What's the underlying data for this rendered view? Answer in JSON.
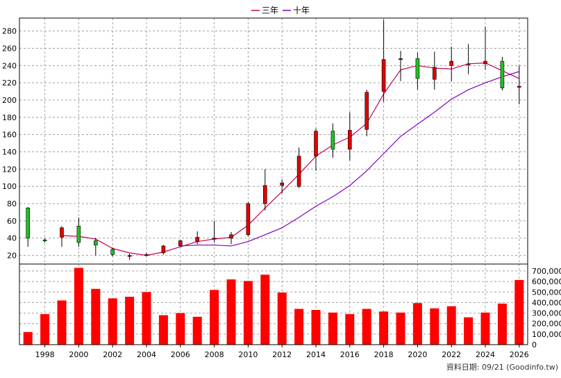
{
  "legend": {
    "items": [
      {
        "label": "三年",
        "color": "#c8005a"
      },
      {
        "label": "十年",
        "color": "#8000c0"
      }
    ]
  },
  "source_note": "資料日期: 09/21 (Goodinfo.tw)",
  "colors": {
    "up_candle": "#e00000",
    "down_candle": "#20c020",
    "volume_bar": "#ff0000",
    "grid": "#a0a0a0",
    "ma3": "#c8005a",
    "ma10": "#8000c0"
  },
  "chart_data": [
    {
      "type": "candlestick",
      "title": "",
      "xlabel": "",
      "ylabel": "",
      "x_tick_labels": [
        "1998",
        "2000",
        "2002",
        "2004",
        "2006",
        "2008",
        "2010",
        "2012",
        "2014",
        "2016",
        "2018",
        "2020",
        "2022",
        "2024",
        "2026"
      ],
      "x_range": [
        1996.5,
        2026.5
      ],
      "y_ticks": [
        20,
        40,
        60,
        80,
        100,
        120,
        140,
        160,
        180,
        200,
        220,
        240,
        260,
        280
      ],
      "ylim": [
        10,
        295
      ],
      "grid": true,
      "ohlc": [
        {
          "year": 1997,
          "open": 75,
          "high": 76,
          "low": 30,
          "close": 40
        },
        {
          "year": 1998,
          "open": 38,
          "high": 40,
          "low": 35,
          "close": 37
        },
        {
          "year": 1999,
          "open": 41,
          "high": 54,
          "low": 30,
          "close": 52
        },
        {
          "year": 2000,
          "open": 54,
          "high": 64,
          "low": 30,
          "close": 35
        },
        {
          "year": 2001,
          "open": 37,
          "high": 40,
          "low": 20,
          "close": 32
        },
        {
          "year": 2002,
          "open": 27,
          "high": 29,
          "low": 19,
          "close": 21
        },
        {
          "year": 2003,
          "open": 20,
          "high": 22,
          "low": 15,
          "close": 20
        },
        {
          "year": 2004,
          "open": 20,
          "high": 23,
          "low": 19,
          "close": 21
        },
        {
          "year": 2005,
          "open": 23,
          "high": 32,
          "low": 21,
          "close": 31
        },
        {
          "year": 2006,
          "open": 31,
          "high": 38,
          "low": 30,
          "close": 37
        },
        {
          "year": 2007,
          "open": 36,
          "high": 48,
          "low": 33,
          "close": 41
        },
        {
          "year": 2008,
          "open": 39,
          "high": 60,
          "low": 35,
          "close": 40
        },
        {
          "year": 2009,
          "open": 40,
          "high": 47,
          "low": 33,
          "close": 44
        },
        {
          "year": 2010,
          "open": 44,
          "high": 82,
          "low": 42,
          "close": 80
        },
        {
          "year": 2011,
          "open": 80,
          "high": 120,
          "low": 72,
          "close": 101
        },
        {
          "year": 2012,
          "open": 101,
          "high": 108,
          "low": 92,
          "close": 104
        },
        {
          "year": 2013,
          "open": 100,
          "high": 145,
          "low": 98,
          "close": 135
        },
        {
          "year": 2014,
          "open": 135,
          "high": 167,
          "low": 118,
          "close": 164
        },
        {
          "year": 2015,
          "open": 164,
          "high": 173,
          "low": 133,
          "close": 143
        },
        {
          "year": 2016,
          "open": 143,
          "high": 186,
          "low": 130,
          "close": 165
        },
        {
          "year": 2017,
          "open": 166,
          "high": 212,
          "low": 158,
          "close": 209
        },
        {
          "year": 2018,
          "open": 210,
          "high": 293,
          "low": 198,
          "close": 247
        },
        {
          "year": 2019,
          "open": 247,
          "high": 257,
          "low": 222,
          "close": 248
        },
        {
          "year": 2020,
          "open": 248,
          "high": 255,
          "low": 212,
          "close": 225
        },
        {
          "year": 2021,
          "open": 224,
          "high": 256,
          "low": 212,
          "close": 238
        },
        {
          "year": 2022,
          "open": 240,
          "high": 262,
          "low": 222,
          "close": 245
        },
        {
          "year": 2023,
          "open": 242,
          "high": 265,
          "low": 230,
          "close": 242
        },
        {
          "year": 2024,
          "open": 242,
          "high": 285,
          "low": 235,
          "close": 245
        },
        {
          "year": 2025,
          "open": 245,
          "high": 250,
          "low": 211,
          "close": 214
        },
        {
          "year": 2026,
          "open": 216,
          "high": 240,
          "low": 195,
          "close": 216
        }
      ],
      "series": [
        {
          "name": "三年",
          "x": [
            1998,
            1999,
            2000,
            2001,
            2002,
            2003,
            2004,
            2005,
            2006,
            2007,
            2008,
            2009,
            2010,
            2011,
            2012,
            2013,
            2014,
            2015,
            2016,
            2017,
            2018,
            2019,
            2020,
            2021,
            2022,
            2023,
            2024,
            2025,
            2026
          ],
          "values": [
            null,
            43,
            42,
            39,
            28,
            23,
            20,
            24,
            30,
            36,
            39,
            41,
            55,
            75,
            94,
            114,
            135,
            148,
            157,
            173,
            207,
            235,
            240,
            237,
            236,
            242,
            243,
            234,
            225
          ]
        },
        {
          "name": "十年",
          "x": [
            2006,
            2007,
            2008,
            2009,
            2010,
            2011,
            2012,
            2013,
            2014,
            2015,
            2016,
            2017,
            2018,
            2019,
            2020,
            2021,
            2022,
            2023,
            2024,
            2025,
            2026
          ],
          "values": [
            31,
            32,
            32,
            31,
            36,
            44,
            52,
            64,
            77,
            88,
            101,
            118,
            138,
            158,
            172,
            186,
            201,
            212,
            220,
            227,
            233
          ]
        }
      ]
    },
    {
      "type": "bar",
      "title": "",
      "xlabel": "",
      "ylabel": "",
      "y_ticks": [
        0,
        100000,
        200000,
        300000,
        400000,
        500000,
        600000,
        700000
      ],
      "y_tick_labels": [
        "0",
        "100,000",
        "200,000",
        "300,000",
        "400,000",
        "500,000",
        "600,000",
        "700,000"
      ],
      "ylim": [
        0,
        700000
      ],
      "categories": [
        1997,
        1998,
        1999,
        2000,
        2001,
        2002,
        2003,
        2004,
        2005,
        2006,
        2007,
        2008,
        2009,
        2010,
        2011,
        2012,
        2013,
        2014,
        2015,
        2016,
        2017,
        2018,
        2019,
        2020,
        2021,
        2022,
        2023,
        2024,
        2025,
        2026
      ],
      "values": [
        120000,
        290000,
        420000,
        730000,
        530000,
        440000,
        455000,
        500000,
        280000,
        300000,
        265000,
        520000,
        620000,
        605000,
        665000,
        495000,
        340000,
        330000,
        305000,
        290000,
        340000,
        315000,
        305000,
        395000,
        345000,
        365000,
        260000,
        305000,
        390000,
        615000
      ]
    }
  ]
}
